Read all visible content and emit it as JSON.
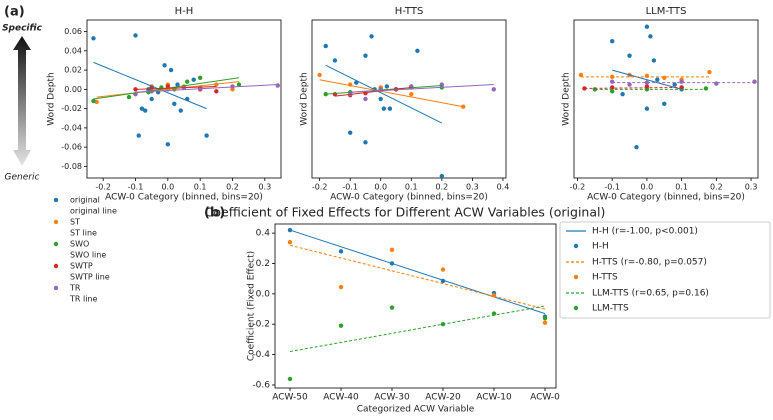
{
  "figure_a": {
    "label": "(a)",
    "top_label": "Specific",
    "bottom_label": "Generic",
    "legend": [
      {
        "name": "original",
        "line_name": "original line",
        "color": "#1f77b4"
      },
      {
        "name": "ST",
        "line_name": "ST line",
        "color": "#ff7f0e"
      },
      {
        "name": "SWO",
        "line_name": "SWO line",
        "color": "#2ca02c"
      },
      {
        "name": "SWTP",
        "line_name": "SWTP line",
        "color": "#d62728"
      },
      {
        "name": "TR",
        "line_name": "TR line",
        "color": "#9467bd"
      }
    ]
  },
  "figure_b": {
    "label": "(b)"
  },
  "chart_data": [
    {
      "type": "scatter",
      "title": "H-H",
      "xlabel": "ACW-0 Category (binned, bins=20)",
      "ylabel": "Word Depth",
      "xlim": [
        -0.25,
        0.35
      ],
      "xticks": [
        -0.2,
        -0.1,
        {
          "value": 0,
          "label": "0.0"
        },
        0.1,
        0.2,
        0.3
      ],
      "ylim": [
        -0.092,
        0.072
      ],
      "yticks": [
        0.06,
        0.04,
        0.02,
        {
          "value": 0,
          "label": "0.00"
        },
        -0.02,
        -0.04,
        -0.06,
        -0.08
      ],
      "series": [
        {
          "x": [
            -0.23,
            -0.1,
            -0.09,
            -0.08,
            -0.07,
            -0.05,
            -0.03,
            -0.01,
            0.0,
            0.01,
            0.02,
            0.04,
            0.06,
            0.12,
            0.08,
            -0.06,
            0.03
          ],
          "y": [
            0.053,
            0.056,
            -0.048,
            -0.02,
            -0.022,
            -0.01,
            -0.003,
            0.025,
            -0.057,
            0.02,
            -0.015,
            -0.022,
            -0.01,
            -0.048,
            0.01,
            0.0,
            0.005
          ],
          "line_x": [
            -0.23,
            0.12
          ],
          "line_y": [
            0.028,
            -0.02
          ]
        },
        {
          "x": [
            -0.22,
            -0.1,
            -0.05,
            0.0,
            0.05,
            0.1,
            0.15,
            0.2
          ],
          "y": [
            -0.013,
            -0.005,
            0.003,
            0.005,
            0.003,
            0.002,
            0.005,
            0.0
          ],
          "line_x": [
            -0.22,
            0.22
          ],
          "line_y": [
            -0.008,
            0.008
          ]
        },
        {
          "x": [
            -0.23,
            -0.12,
            -0.06,
            -0.02,
            0.02,
            0.06,
            0.1,
            0.22
          ],
          "y": [
            -0.012,
            -0.008,
            -0.003,
            0.002,
            0.0,
            0.008,
            0.012,
            0.005
          ],
          "line_x": [
            -0.23,
            0.22
          ],
          "line_y": [
            -0.01,
            0.012
          ]
        },
        {
          "x": [
            -0.1,
            -0.05,
            0.0,
            0.05,
            0.1,
            0.15
          ],
          "y": [
            0.0,
            0.002,
            0.003,
            0.002,
            0.0,
            -0.002
          ],
          "line_x": [
            -0.1,
            0.15
          ],
          "line_y": [
            0.0,
            0.003
          ]
        },
        {
          "x": [
            -0.1,
            -0.05,
            0.0,
            0.05,
            0.1,
            0.2,
            0.34
          ],
          "y": [
            -0.005,
            -0.002,
            0.0,
            0.002,
            0.001,
            0.003,
            0.004
          ],
          "line_x": [
            -0.1,
            0.34
          ],
          "line_y": [
            -0.003,
            0.005
          ]
        }
      ]
    },
    {
      "type": "scatter",
      "title": "H-TTS",
      "xlabel": "ACW-0 Category (binned, bins=20)",
      "ylabel": "Word Depth",
      "xlim": [
        -0.225,
        0.41
      ],
      "xticks": [
        -0.2,
        -0.1,
        {
          "value": 0,
          "label": "0.0"
        },
        0.1,
        0.2,
        0.3,
        0.4
      ],
      "ylim": [
        -0.092,
        0.072
      ],
      "series": [
        {
          "x": [
            -0.18,
            -0.15,
            -0.1,
            -0.05,
            -0.05,
            -0.03,
            -0.02,
            0.0,
            0.01,
            0.03,
            0.05,
            0.12,
            0.2,
            -0.08,
            0.02
          ],
          "y": [
            0.045,
            0.03,
            -0.045,
            -0.055,
            0.035,
            0.055,
            0.0,
            -0.01,
            -0.02,
            -0.02,
            0.0,
            0.04,
            -0.09,
            0.007,
            0.003
          ],
          "line_x": [
            -0.18,
            0.2
          ],
          "line_y": [
            0.025,
            -0.035
          ]
        },
        {
          "x": [
            -0.2,
            -0.1,
            0.0,
            0.1,
            0.27
          ],
          "y": [
            0.015,
            0.005,
            0.002,
            -0.005,
            -0.018
          ],
          "line_x": [
            -0.2,
            0.27
          ],
          "line_y": [
            0.01,
            -0.018
          ]
        },
        {
          "x": [
            -0.18,
            -0.1,
            0.0,
            0.1,
            0.2
          ],
          "y": [
            -0.005,
            -0.003,
            0.0,
            0.003,
            0.002
          ],
          "line_x": [
            -0.18,
            0.2
          ],
          "line_y": [
            -0.005,
            0.004
          ]
        },
        {
          "x": [
            -0.15,
            -0.1,
            -0.05,
            0.0,
            0.05,
            0.1
          ],
          "y": [
            -0.005,
            -0.006,
            -0.004,
            0.0,
            0.0,
            0.002
          ],
          "line_x": [
            -0.15,
            0.1
          ],
          "line_y": [
            -0.007,
            0.002
          ]
        },
        {
          "x": [
            -0.1,
            -0.05,
            0.0,
            0.1,
            0.2,
            0.37
          ],
          "y": [
            -0.005,
            -0.01,
            0.0,
            0.003,
            0.005,
            0.0
          ],
          "line_x": [
            -0.1,
            0.37
          ],
          "line_y": [
            -0.003,
            0.005
          ]
        }
      ]
    },
    {
      "type": "scatter",
      "title": "LLM-TTS",
      "xlabel": "ACW-0 Category (binned, bins=20)",
      "ylabel": "Word Depth",
      "xlim": [
        -0.21,
        0.32
      ],
      "xticks": [
        -0.2,
        -0.1,
        {
          "value": 0,
          "label": "0.0"
        },
        0.1,
        0.2,
        0.3
      ],
      "ylim": [
        -0.092,
        0.072
      ],
      "series": [
        {
          "x": [
            -0.1,
            -0.05,
            -0.03,
            0.0,
            0.0,
            0.01,
            0.02,
            0.05,
            0.08,
            0.1,
            -0.07,
            0.03
          ],
          "y": [
            0.05,
            0.035,
            -0.06,
            0.065,
            -0.02,
            0.055,
            0.03,
            -0.015,
            0.005,
            0.0,
            -0.005,
            0.01
          ],
          "line_x": [
            -0.1,
            0.1
          ],
          "line_y": [
            0.02,
            0.0
          ]
        },
        {
          "x": [
            -0.19,
            -0.1,
            -0.05,
            0.0,
            0.05,
            0.1,
            0.18
          ],
          "y": [
            0.015,
            0.013,
            0.015,
            0.014,
            0.012,
            0.01,
            0.018
          ],
          "line_x": [
            -0.19,
            0.18
          ],
          "line_y": [
            0.013,
            0.013
          ],
          "dashed": true
        },
        {
          "x": [
            -0.15,
            -0.1,
            0.0,
            0.1,
            0.17
          ],
          "y": [
            0.0,
            -0.002,
            0.0,
            0.002,
            0.001
          ],
          "line_x": [
            -0.15,
            0.17
          ],
          "line_y": [
            0.0,
            0.0
          ],
          "dashed": true
        },
        {
          "x": [
            -0.18,
            -0.1,
            0.0,
            0.1
          ],
          "y": [
            0.001,
            0.002,
            0.003,
            0.002
          ],
          "line_x": [
            -0.18,
            0.1
          ],
          "line_y": [
            0.001,
            0.002
          ],
          "dashed": true
        },
        {
          "x": [
            -0.1,
            -0.05,
            0.0,
            0.1,
            0.2,
            0.31
          ],
          "y": [
            0.008,
            0.005,
            0.007,
            0.008,
            0.006,
            0.008
          ],
          "line_x": [
            -0.1,
            0.31
          ],
          "line_y": [
            0.007,
            0.007
          ],
          "dashed": true
        }
      ]
    },
    {
      "type": "line",
      "title": "Coefficient of Fixed Effects for Different ACW Variables (original)",
      "xlabel": "Categorized ACW Variable",
      "ylabel": "Coefficient (Fixed Effect)",
      "categories": [
        "ACW-50",
        "ACW-40",
        "ACW-30",
        "ACW-20",
        "ACW-10",
        "ACW-0"
      ],
      "ylim": [
        -0.62,
        0.46
      ],
      "yticks": [
        0.4,
        0.2,
        {
          "value": 0,
          "label": "0.0"
        },
        -0.2,
        -0.4,
        -0.6
      ],
      "series": [
        {
          "name": "H-H",
          "color": "#1f77b4",
          "values": [
            0.42,
            0.28,
            0.2,
            0.085,
            0.005,
            -0.15
          ],
          "fit_name": "H-H (r=-1.00, p<0.001)",
          "fit": [
            0.42,
            -0.13
          ],
          "dashed": false
        },
        {
          "name": "H-TTS",
          "color": "#ff7f0e",
          "values": [
            0.34,
            0.045,
            0.29,
            0.16,
            -0.01,
            -0.19
          ],
          "fit_name": "H-TTS (r=-0.80, p=0.057)",
          "fit": [
            0.32,
            -0.1
          ],
          "dashed": true
        },
        {
          "name": "LLM-TTS",
          "color": "#2ca02c",
          "values": [
            -0.56,
            -0.21,
            -0.09,
            -0.2,
            -0.13,
            -0.16
          ],
          "fit_name": "LLM-TTS (r=0.65, p=0.16)",
          "fit": [
            -0.38,
            -0.08
          ],
          "dashed": true
        }
      ]
    }
  ]
}
